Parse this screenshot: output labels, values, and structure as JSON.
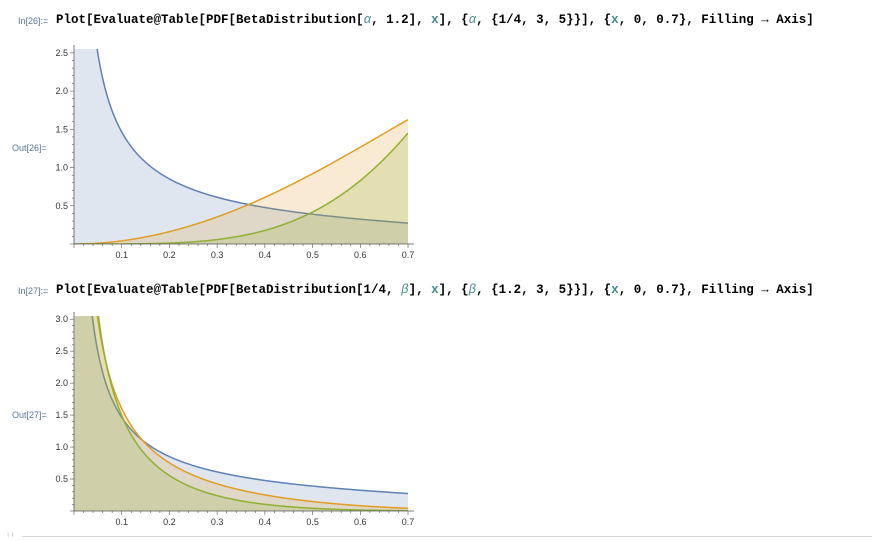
{
  "cells": [
    {
      "in_label": "In[26]:=",
      "out_label": "Out[26]=",
      "code_parts": [
        {
          "t": "Plot[Evaluate@Table[PDF[BetaDistribution[",
          "c": ""
        },
        {
          "t": "α",
          "c": "sym"
        },
        {
          "t": ", 1.2], ",
          "c": ""
        },
        {
          "t": "x",
          "c": "var"
        },
        {
          "t": "], {",
          "c": ""
        },
        {
          "t": "α",
          "c": "sym"
        },
        {
          "t": ", {1/4, 3, 5}}], {",
          "c": ""
        },
        {
          "t": "x",
          "c": "var"
        },
        {
          "t": ", 0, 0.7}, Filling → Axis]",
          "c": ""
        }
      ],
      "chart_data": {
        "type": "area",
        "function": "PDF[BetaDistribution[α, 1.2], x]",
        "x_range": [
          0,
          0.7
        ],
        "ylim": [
          0,
          2.55
        ],
        "x_ticks": [
          "0.1",
          "0.2",
          "0.3",
          "0.4",
          "0.5",
          "0.6",
          "0.7"
        ],
        "y_ticks": [
          "0.5",
          "1.0",
          "1.5",
          "2.0",
          "2.5"
        ],
        "filling": "Axis",
        "series": [
          {
            "alpha": 0.25,
            "beta": 1.2,
            "color": "#5e81b5"
          },
          {
            "alpha": 3,
            "beta": 1.2,
            "color": "#e19c24"
          },
          {
            "alpha": 5,
            "beta": 1.2,
            "color": "#8fb032"
          }
        ]
      }
    },
    {
      "in_label": "In[27]:=",
      "out_label": "Out[27]=",
      "code_parts": [
        {
          "t": "Plot[Evaluate@Table[PDF[BetaDistribution[1/4, ",
          "c": ""
        },
        {
          "t": "β",
          "c": "sym"
        },
        {
          "t": "], ",
          "c": ""
        },
        {
          "t": "x",
          "c": "var"
        },
        {
          "t": "], {",
          "c": ""
        },
        {
          "t": "β",
          "c": "sym"
        },
        {
          "t": ", {1.2, 3, 5}}], {",
          "c": ""
        },
        {
          "t": "x",
          "c": "var"
        },
        {
          "t": ", 0, 0.7}, Filling → Axis]",
          "c": ""
        }
      ],
      "chart_data": {
        "type": "area",
        "function": "PDF[BetaDistribution[1/4, β], x]",
        "x_range": [
          0,
          0.7
        ],
        "ylim": [
          0,
          3.05
        ],
        "x_ticks": [
          "0.1",
          "0.2",
          "0.3",
          "0.4",
          "0.5",
          "0.6",
          "0.7"
        ],
        "y_ticks": [
          "0.5",
          "1.0",
          "1.5",
          "2.0",
          "2.5",
          "3.0"
        ],
        "filling": "Axis",
        "series": [
          {
            "alpha": 0.25,
            "beta": 1.2,
            "color": "#5e81b5"
          },
          {
            "alpha": 0.25,
            "beta": 3,
            "color": "#e19c24"
          },
          {
            "alpha": 0.25,
            "beta": 5,
            "color": "#8fb032"
          }
        ]
      }
    }
  ]
}
